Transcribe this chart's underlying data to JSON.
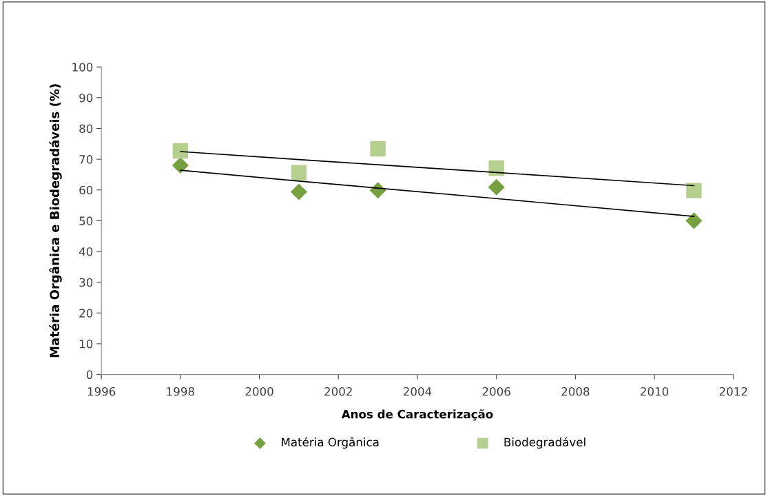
{
  "chart_data": {
    "type": "scatter",
    "xlabel": "Anos de Caracterização",
    "ylabel": "Matéria Orgânica e Biodegradáveis (%)",
    "x": [
      1998,
      2001,
      2003,
      2006,
      2011
    ],
    "series": [
      {
        "name": "Matéria Orgânica",
        "color": "#77a040",
        "marker": "diamond",
        "values": [
          68.0,
          59.4,
          59.9,
          60.9,
          50.0
        ]
      },
      {
        "name": "Biodegradável",
        "color": "#b5cf8f",
        "marker": "square",
        "values": [
          72.7,
          65.6,
          73.4,
          67.1,
          59.8
        ]
      },
      {
        "type": "line",
        "color": "#000000",
        "marker": "none",
        "values": [
          66.4,
          62.9,
          60.6,
          57.2,
          51.4
        ]
      },
      {
        "type": "line",
        "color": "#000000",
        "marker": "none",
        "values": [
          72.5,
          69.9,
          68.2,
          65.7,
          61.4
        ]
      }
    ],
    "xlim": [
      1996,
      2012
    ],
    "xticks": [
      1996,
      1998,
      2000,
      2002,
      2004,
      2006,
      2008,
      2010,
      2012
    ],
    "ylim": [
      0,
      100
    ],
    "yticks": [
      0,
      10,
      20,
      30,
      40,
      50,
      60,
      70,
      80,
      90,
      100
    ],
    "grid": false,
    "legend": "bottom"
  }
}
